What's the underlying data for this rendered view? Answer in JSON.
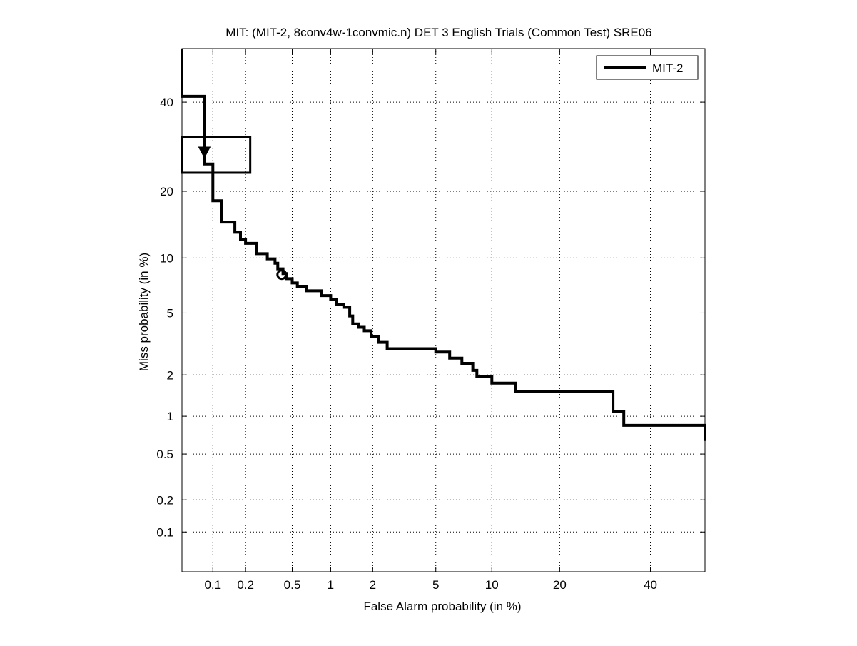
{
  "chart_data": {
    "type": "line",
    "title": "MIT: (MIT-2, 8conv4w-1convmic.n) DET 3 English Trials (Common Test) SRE06",
    "xlabel": "False Alarm probability (in %)",
    "ylabel": "Miss probability (in %)",
    "x_scale": "probit",
    "y_scale": "probit",
    "xlim": [
      0.05,
      54
    ],
    "ylim": [
      0.04,
      54
    ],
    "xticks": [
      {
        "value": 0.1,
        "label": "0.1"
      },
      {
        "value": 0.2,
        "label": "0.2"
      },
      {
        "value": 0.5,
        "label": "0.5"
      },
      {
        "value": 1,
        "label": "1"
      },
      {
        "value": 2,
        "label": "2"
      },
      {
        "value": 5,
        "label": "5"
      },
      {
        "value": 10,
        "label": "10"
      },
      {
        "value": 20,
        "label": "20"
      },
      {
        "value": 40,
        "label": "40"
      }
    ],
    "yticks": [
      {
        "value": 0.1,
        "label": "0.1"
      },
      {
        "value": 0.2,
        "label": "0.2"
      },
      {
        "value": 0.5,
        "label": "0.5"
      },
      {
        "value": 1,
        "label": "1"
      },
      {
        "value": 2,
        "label": "2"
      },
      {
        "value": 5,
        "label": "5"
      },
      {
        "value": 10,
        "label": "10"
      },
      {
        "value": 20,
        "label": "20"
      },
      {
        "value": 40,
        "label": "40"
      }
    ],
    "grid": true,
    "legend_position": "top-right",
    "series": [
      {
        "name": "MIT-2",
        "color": "#000000",
        "points": [
          [
            0.05,
            54
          ],
          [
            0.05,
            41.5
          ],
          [
            0.083,
            41.5
          ],
          [
            0.083,
            25.4
          ],
          [
            0.1,
            25.4
          ],
          [
            0.1,
            18.3
          ],
          [
            0.12,
            18.3
          ],
          [
            0.12,
            14.8
          ],
          [
            0.16,
            14.8
          ],
          [
            0.16,
            13.3
          ],
          [
            0.18,
            13.3
          ],
          [
            0.18,
            12.3
          ],
          [
            0.2,
            12.3
          ],
          [
            0.2,
            11.8
          ],
          [
            0.25,
            11.8
          ],
          [
            0.25,
            10.5
          ],
          [
            0.31,
            10.5
          ],
          [
            0.31,
            9.9
          ],
          [
            0.36,
            9.9
          ],
          [
            0.36,
            9.4
          ],
          [
            0.38,
            9.4
          ],
          [
            0.38,
            8.8
          ],
          [
            0.42,
            8.8
          ],
          [
            0.42,
            8.3
          ],
          [
            0.45,
            8.3
          ],
          [
            0.45,
            7.8
          ],
          [
            0.5,
            7.8
          ],
          [
            0.5,
            7.4
          ],
          [
            0.55,
            7.4
          ],
          [
            0.55,
            7.1
          ],
          [
            0.65,
            7.1
          ],
          [
            0.65,
            6.7
          ],
          [
            0.85,
            6.7
          ],
          [
            0.85,
            6.3
          ],
          [
            1.0,
            6.3
          ],
          [
            1.0,
            6.0
          ],
          [
            1.1,
            6.0
          ],
          [
            1.1,
            5.6
          ],
          [
            1.25,
            5.6
          ],
          [
            1.25,
            5.4
          ],
          [
            1.38,
            5.4
          ],
          [
            1.38,
            4.8
          ],
          [
            1.45,
            4.8
          ],
          [
            1.45,
            4.3
          ],
          [
            1.6,
            4.3
          ],
          [
            1.6,
            4.1
          ],
          [
            1.75,
            4.1
          ],
          [
            1.75,
            3.9
          ],
          [
            1.95,
            3.9
          ],
          [
            1.95,
            3.6
          ],
          [
            2.2,
            3.6
          ],
          [
            2.2,
            3.3
          ],
          [
            2.5,
            3.3
          ],
          [
            2.5,
            3.0
          ],
          [
            5.0,
            3.0
          ],
          [
            5.0,
            2.85
          ],
          [
            6.0,
            2.85
          ],
          [
            6.0,
            2.6
          ],
          [
            7.0,
            2.6
          ],
          [
            7.0,
            2.4
          ],
          [
            8.0,
            2.4
          ],
          [
            8.0,
            2.15
          ],
          [
            8.4,
            2.15
          ],
          [
            8.4,
            1.95
          ],
          [
            10.0,
            1.95
          ],
          [
            10.0,
            1.75
          ],
          [
            13.0,
            1.75
          ],
          [
            13.0,
            1.52
          ],
          [
            31.0,
            1.52
          ],
          [
            31.0,
            1.08
          ],
          [
            33.5,
            1.08
          ],
          [
            33.5,
            0.85
          ],
          [
            54.0,
            0.85
          ],
          [
            54.0,
            0.64
          ]
        ]
      }
    ],
    "box": {
      "x_min": 0.05,
      "x_max": 0.22,
      "y_min": 23.6,
      "y_max": 31.5,
      "color": "#000000"
    },
    "markers": [
      {
        "type": "down-triangle",
        "x": 0.083,
        "y": 28
      },
      {
        "type": "circle",
        "x": 0.41,
        "y": 8.2
      }
    ]
  }
}
